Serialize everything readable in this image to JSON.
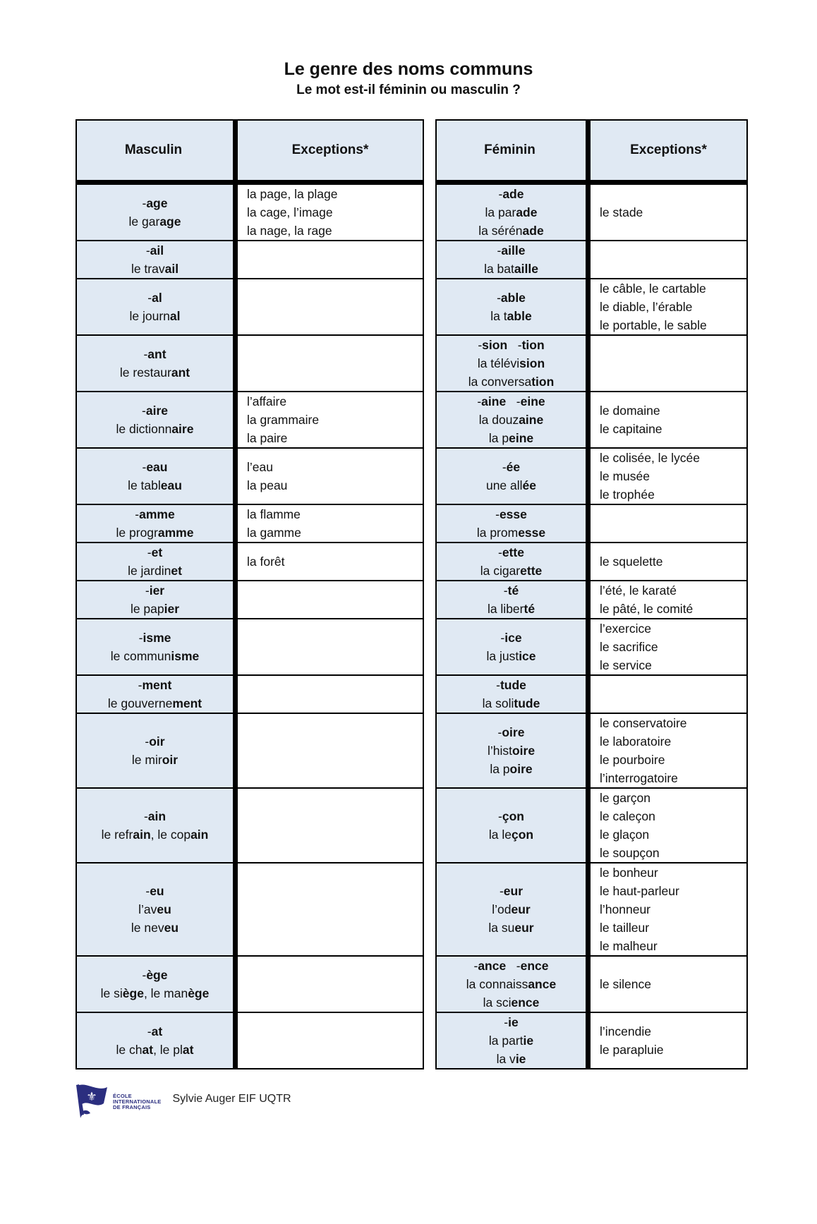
{
  "title": "Le genre des noms communs",
  "subtitle": "Le mot est-il féminin ou masculin ?",
  "tables": [
    {
      "id": "masculin",
      "headers": [
        "Masculin",
        "Exceptions*"
      ],
      "rows": [
        {
          "key": [
            [
              {
                "t": "-"
              },
              {
                "t": "age",
                "b": 1
              }
            ],
            [
              {
                "t": "le gar"
              },
              {
                "t": "age",
                "b": 1
              }
            ]
          ],
          "exc": [
            "la page, la plage",
            "la cage, l’image",
            "la nage, la rage"
          ]
        },
        {
          "key": [
            [
              {
                "t": "-"
              },
              {
                "t": "ail",
                "b": 1
              }
            ],
            [
              {
                "t": "le trav"
              },
              {
                "t": "ail",
                "b": 1
              }
            ]
          ],
          "exc": []
        },
        {
          "key": [
            [
              {
                "t": "-"
              },
              {
                "t": "al",
                "b": 1
              }
            ],
            [
              {
                "t": "le journ"
              },
              {
                "t": "al",
                "b": 1
              }
            ]
          ],
          "exc": []
        },
        {
          "key": [
            [
              {
                "t": "-"
              },
              {
                "t": "ant",
                "b": 1
              }
            ],
            [
              {
                "t": "le restaur"
              },
              {
                "t": "ant",
                "b": 1
              }
            ]
          ],
          "exc": []
        },
        {
          "key": [
            [
              {
                "t": "-"
              },
              {
                "t": "aire",
                "b": 1
              }
            ],
            [
              {
                "t": "le dictionn"
              },
              {
                "t": "aire",
                "b": 1
              }
            ]
          ],
          "exc": [
            "l’affaire",
            "la grammaire",
            "la paire"
          ]
        },
        {
          "key": [
            [
              {
                "t": "-"
              },
              {
                "t": "eau",
                "b": 1
              }
            ],
            [
              {
                "t": "le tabl"
              },
              {
                "t": "eau",
                "b": 1
              }
            ]
          ],
          "exc": [
            "l’eau",
            "la peau"
          ]
        },
        {
          "key": [
            [
              {
                "t": "-"
              },
              {
                "t": "amme",
                "b": 1
              }
            ],
            [
              {
                "t": "le progr"
              },
              {
                "t": "amme",
                "b": 1
              }
            ]
          ],
          "exc": [
            "la flamme",
            "la gamme"
          ]
        },
        {
          "key": [
            [
              {
                "t": "-"
              },
              {
                "t": "et",
                "b": 1
              }
            ],
            [
              {
                "t": "le jardin"
              },
              {
                "t": "et",
                "b": 1
              }
            ]
          ],
          "exc": [
            "la forêt"
          ]
        },
        {
          "key": [
            [
              {
                "t": "-"
              },
              {
                "t": "ier",
                "b": 1
              }
            ],
            [
              {
                "t": "le pap"
              },
              {
                "t": "ier",
                "b": 1
              }
            ]
          ],
          "exc": []
        },
        {
          "key": [
            [
              {
                "t": "-"
              },
              {
                "t": "isme",
                "b": 1
              }
            ],
            [
              {
                "t": "le commun"
              },
              {
                "t": "isme",
                "b": 1
              }
            ]
          ],
          "exc": []
        },
        {
          "key": [
            [
              {
                "t": "-"
              },
              {
                "t": "ment",
                "b": 1
              }
            ],
            [
              {
                "t": "le gouverne"
              },
              {
                "t": "ment",
                "b": 1
              }
            ]
          ],
          "exc": []
        },
        {
          "key": [
            [
              {
                "t": "-"
              },
              {
                "t": "oir",
                "b": 1
              }
            ],
            [
              {
                "t": "le mir"
              },
              {
                "t": "oir",
                "b": 1
              }
            ]
          ],
          "exc": []
        },
        {
          "key": [
            [
              {
                "t": "-"
              },
              {
                "t": "ain",
                "b": 1
              }
            ],
            [
              {
                "t": "le refr"
              },
              {
                "t": "ain",
                "b": 1
              },
              {
                "t": ", le cop"
              },
              {
                "t": "ain",
                "b": 1
              }
            ]
          ],
          "exc": []
        },
        {
          "key": [
            [
              {
                "t": "-"
              },
              {
                "t": "eu",
                "b": 1
              }
            ],
            [
              {
                "t": "l’av"
              },
              {
                "t": "eu",
                "b": 1
              }
            ],
            [
              {
                "t": "le nev"
              },
              {
                "t": "eu",
                "b": 1
              }
            ]
          ],
          "exc": []
        },
        {
          "key": [
            [
              {
                "t": "-"
              },
              {
                "t": "ège",
                "b": 1
              }
            ],
            [
              {
                "t": "le si"
              },
              {
                "t": "ège",
                "b": 1
              },
              {
                "t": ", le man"
              },
              {
                "t": "ège",
                "b": 1
              }
            ]
          ],
          "exc": []
        },
        {
          "key": [
            [
              {
                "t": "-"
              },
              {
                "t": "at",
                "b": 1
              }
            ],
            [
              {
                "t": "le ch"
              },
              {
                "t": "at",
                "b": 1
              },
              {
                "t": ", le pl"
              },
              {
                "t": "at",
                "b": 1
              }
            ]
          ],
          "exc": []
        }
      ]
    },
    {
      "id": "feminin",
      "headers": [
        "Féminin",
        "Exceptions*"
      ],
      "rows": [
        {
          "key": [
            [
              {
                "t": "-"
              },
              {
                "t": "ade",
                "b": 1
              }
            ],
            [
              {
                "t": "la par"
              },
              {
                "t": "ade",
                "b": 1
              }
            ],
            [
              {
                "t": "la sérén"
              },
              {
                "t": "ade",
                "b": 1
              }
            ]
          ],
          "exc": [
            "le stade"
          ]
        },
        {
          "key": [
            [
              {
                "t": "-"
              },
              {
                "t": "aille",
                "b": 1
              }
            ],
            [
              {
                "t": "la bat"
              },
              {
                "t": "aille",
                "b": 1
              }
            ]
          ],
          "exc": []
        },
        {
          "key": [
            [
              {
                "t": "-"
              },
              {
                "t": "able",
                "b": 1
              }
            ],
            [
              {
                "t": "la t"
              },
              {
                "t": "able",
                "b": 1
              }
            ]
          ],
          "exc": [
            "le câble, le cartable",
            "le diable, l’érable",
            "le portable, le sable"
          ]
        },
        {
          "key": [
            [
              {
                "t": "-"
              },
              {
                "t": "sion",
                "b": 1
              },
              {
                "t": "   -"
              },
              {
                "t": "tion",
                "b": 1
              }
            ],
            [
              {
                "t": "la télévi"
              },
              {
                "t": "sion",
                "b": 1
              }
            ],
            [
              {
                "t": "la conversa"
              },
              {
                "t": "tion",
                "b": 1
              }
            ]
          ],
          "exc": []
        },
        {
          "key": [
            [
              {
                "t": "-"
              },
              {
                "t": "aine",
                "b": 1
              },
              {
                "t": "   -"
              },
              {
                "t": "eine",
                "b": 1
              }
            ],
            [
              {
                "t": "la douz"
              },
              {
                "t": "aine",
                "b": 1
              }
            ],
            [
              {
                "t": "la p"
              },
              {
                "t": "eine",
                "b": 1
              }
            ]
          ],
          "exc": [
            "le domaine",
            "le capitaine"
          ]
        },
        {
          "key": [
            [
              {
                "t": "-"
              },
              {
                "t": "ée",
                "b": 1
              }
            ],
            [
              {
                "t": "une all"
              },
              {
                "t": "ée",
                "b": 1
              }
            ]
          ],
          "exc": [
            "le colisée, le lycée",
            "le musée",
            "le trophée"
          ]
        },
        {
          "key": [
            [
              {
                "t": "-"
              },
              {
                "t": "esse",
                "b": 1
              }
            ],
            [
              {
                "t": "la prom"
              },
              {
                "t": "esse",
                "b": 1
              }
            ]
          ],
          "exc": []
        },
        {
          "key": [
            [
              {
                "t": "-"
              },
              {
                "t": "ette",
                "b": 1
              }
            ],
            [
              {
                "t": "la cigar"
              },
              {
                "t": "ette",
                "b": 1
              }
            ]
          ],
          "exc": [
            "le squelette"
          ]
        },
        {
          "key": [
            [
              {
                "t": "-"
              },
              {
                "t": "té",
                "b": 1
              }
            ],
            [
              {
                "t": "la liber"
              },
              {
                "t": "té",
                "b": 1
              }
            ]
          ],
          "exc": [
            "l’été, le karaté",
            "le pâté, le comité"
          ]
        },
        {
          "key": [
            [
              {
                "t": "-"
              },
              {
                "t": "ice",
                "b": 1
              }
            ],
            [
              {
                "t": "la just"
              },
              {
                "t": "ice",
                "b": 1
              }
            ]
          ],
          "exc": [
            "l’exercice",
            "le sacrifice",
            "le service"
          ]
        },
        {
          "key": [
            [
              {
                "t": "-"
              },
              {
                "t": "tude",
                "b": 1
              }
            ],
            [
              {
                "t": "la soli"
              },
              {
                "t": "tude",
                "b": 1
              }
            ]
          ],
          "exc": []
        },
        {
          "key": [
            [
              {
                "t": "-"
              },
              {
                "t": "oire",
                "b": 1
              }
            ],
            [
              {
                "t": "l’hist"
              },
              {
                "t": "oire",
                "b": 1
              }
            ],
            [
              {
                "t": "la p"
              },
              {
                "t": "oire",
                "b": 1
              }
            ]
          ],
          "exc": [
            "le conservatoire",
            "le laboratoire",
            "le pourboire",
            "l’interrogatoire"
          ]
        },
        {
          "key": [
            [
              {
                "t": "-"
              },
              {
                "t": "çon",
                "b": 1
              }
            ],
            [
              {
                "t": "la le"
              },
              {
                "t": "çon",
                "b": 1
              }
            ]
          ],
          "exc": [
            "le garçon",
            "le caleçon",
            "le glaçon",
            "le soupçon"
          ]
        },
        {
          "key": [
            [
              {
                "t": "-"
              },
              {
                "t": "eur",
                "b": 1
              }
            ],
            [
              {
                "t": "l’od"
              },
              {
                "t": "eur",
                "b": 1
              }
            ],
            [
              {
                "t": "la su"
              },
              {
                "t": "eur",
                "b": 1
              }
            ]
          ],
          "exc": [
            "le bonheur",
            "le haut-parleur",
            "l’honneur",
            "le tailleur",
            "le malheur"
          ]
        },
        {
          "key": [
            [
              {
                "t": "-"
              },
              {
                "t": "ance",
                "b": 1
              },
              {
                "t": "   -"
              },
              {
                "t": "ence",
                "b": 1
              }
            ],
            [
              {
                "t": "la connaiss"
              },
              {
                "t": "ance",
                "b": 1
              }
            ],
            [
              {
                "t": "la sci"
              },
              {
                "t": "ence",
                "b": 1
              }
            ]
          ],
          "exc": [
            "le silence"
          ]
        },
        {
          "key": [
            [
              {
                "t": "-"
              },
              {
                "t": "ie",
                "b": 1
              }
            ],
            [
              {
                "t": "la part"
              },
              {
                "t": "ie",
                "b": 1
              }
            ],
            [
              {
                "t": "la v"
              },
              {
                "t": "ie",
                "b": 1
              }
            ]
          ],
          "exc": [
            "l’incendie",
            "le parapluie"
          ]
        }
      ]
    }
  ],
  "footer": {
    "logo_lines": [
      "ÉCOLE",
      "INTERNATIONALE",
      "DE FRANÇAIS"
    ],
    "fleur_icon": "⚜",
    "credit": "Sylvie Auger EIF UQTR"
  },
  "colors": {
    "cell_blue": "#e0e9f3",
    "border_black": "#000000",
    "logo_navy": "#2b2e7f"
  }
}
